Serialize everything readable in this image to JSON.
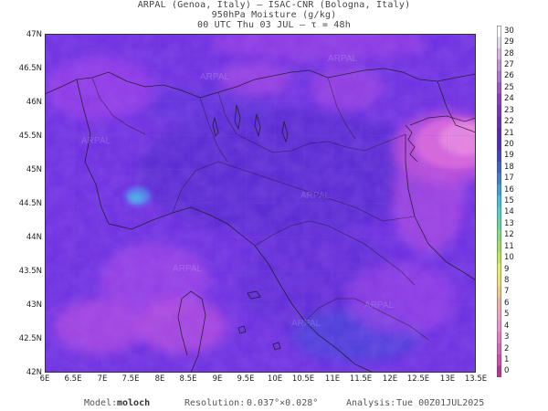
{
  "title": {
    "line1": "ARPAL (Genoa, Italy)  —  ISAC-CNR (Bologna, Italy)",
    "line2": "950hPa Moisture (g/kg)",
    "line3": "00 UTC Thu 03 JUL  —  τ = 48h"
  },
  "axes": {
    "y_ticks": [
      "47N",
      "46.5N",
      "46N",
      "45.5N",
      "45N",
      "44.5N",
      "44N",
      "43.5N",
      "43N",
      "42.5N",
      "42N"
    ],
    "x_ticks": [
      "6E",
      "6.5E",
      "7E",
      "7.5E",
      "8E",
      "8.5E",
      "9E",
      "9.5E",
      "10E",
      "10.5E",
      "11E",
      "11.5E",
      "12E",
      "12.5E",
      "13E",
      "13.5E"
    ],
    "lat_range": [
      42,
      47
    ],
    "lon_range": [
      6,
      13.5
    ]
  },
  "colorbar": {
    "labels": [
      "30",
      "29",
      "28",
      "27",
      "26",
      "25",
      "24",
      "23",
      "22",
      "21",
      "20",
      "19",
      "18",
      "17",
      "16",
      "15",
      "14",
      "13",
      "12",
      "11",
      "10",
      "9",
      "8",
      "7",
      "6",
      "5",
      "4",
      "3",
      "2",
      "1",
      "0"
    ],
    "colors": [
      "#ffffff",
      "#e8d8ec",
      "#d4b4e0",
      "#c090d8",
      "#b070d4",
      "#a050d0",
      "#9036cc",
      "#7c2ec8",
      "#6a28c4",
      "#5a22c0",
      "#4e28c8",
      "#4040cc",
      "#3c60d4",
      "#3c80dc",
      "#3ca0e0",
      "#40c0e0",
      "#50d0c8",
      "#60d8a0",
      "#80e080",
      "#a0e060",
      "#c0e850",
      "#e0f060",
      "#f0e070",
      "#f0c880",
      "#f0b0a0",
      "#f0a0c0",
      "#f090d0",
      "#e878c8",
      "#e060c0",
      "#d848b0",
      "#c03098"
    ]
  },
  "footer": {
    "model_label": "Model:",
    "model_value": "moloch",
    "resolution_label": "Resolution:",
    "resolution_value": "0.037°×0.028°",
    "analysis_label": "Analysis:",
    "analysis_value": "Tue 00Z01JUL2025"
  },
  "watermark": "ARPAL",
  "palette": {
    "base": "#6a2ee0",
    "dark": "#4f26c8",
    "light": "#9a3ee8",
    "magenta": "#c040d8",
    "pink": "#e060d8",
    "cyan": "#40a8e8"
  }
}
